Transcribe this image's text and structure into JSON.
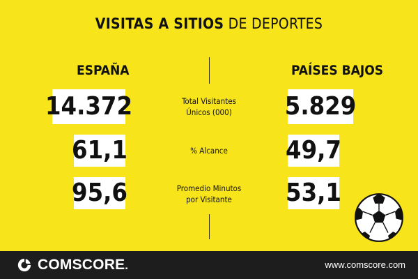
{
  "title": {
    "bold": "VISITAS A SITIOS",
    "light": " DE DEPORTES"
  },
  "columns": {
    "left": "ESPAÑA",
    "right": "PAÍSES BAJOS"
  },
  "metrics": [
    {
      "label_line1": "Total Visitantes",
      "label_line2": "Únicos (000)",
      "espana": "14.372",
      "paises_bajos": "5.829"
    },
    {
      "label_line1": "% Alcance",
      "label_line2": "",
      "espana": "61,1",
      "paises_bajos": "49,7"
    },
    {
      "label_line1": "Promedio Minutos",
      "label_line2": "por Visitante",
      "espana": "95,6",
      "paises_bajos": "53,1"
    }
  ],
  "footer": {
    "brand": "COMSCORE",
    "brand_suffix": ".",
    "website": "www.comscore.com"
  },
  "colors": {
    "background": "#f7e41b",
    "footer": "#1d1d1d",
    "value_box": "#ffffff",
    "text": "#111111"
  },
  "icons": {
    "ball": "soccer-ball-icon",
    "logo": "comscore-logo-icon"
  }
}
